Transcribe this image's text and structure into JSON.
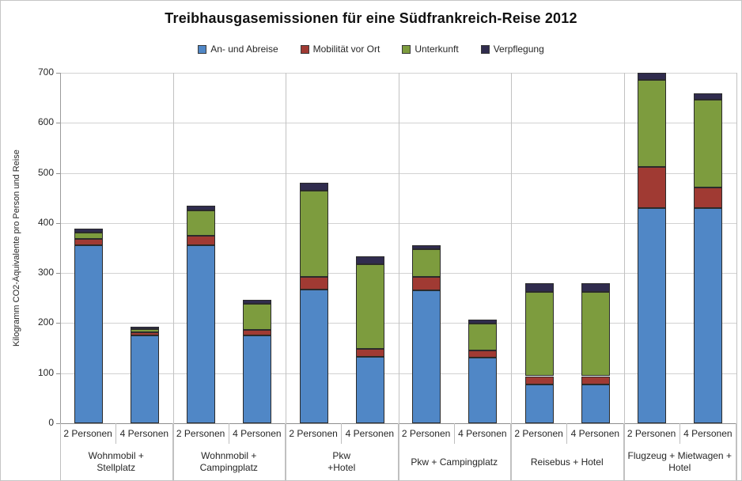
{
  "chart_data": {
    "type": "bar",
    "stacked": true,
    "title": "Treibhausgasemissionen für eine Südfrankreich-Reise 2012",
    "ylabel": "Kilogramm CO2-Äquivalente pro Person und Reise",
    "xlabel": "",
    "ylim": [
      0,
      700
    ],
    "yticks": [
      0,
      100,
      200,
      300,
      400,
      500,
      600,
      700
    ],
    "grid": "horizontal",
    "legend_position": "top",
    "series": [
      {
        "name": "An- und Abreise",
        "color": "#5087C6"
      },
      {
        "name": "Mobilität vor Ort",
        "color": "#A03A33"
      },
      {
        "name": "Unterkunft",
        "color": "#7D9C3E"
      },
      {
        "name": "Verpflegung",
        "color": "#302C4E"
      }
    ],
    "groups": [
      {
        "label": "Wohnmobil +\nStellplatz",
        "bars": [
          {
            "label": "2 Personen",
            "values": [
              355,
              13,
              13,
              7
            ]
          },
          {
            "label": "4 Personen",
            "values": [
              176,
              5,
              7,
              5
            ]
          }
        ]
      },
      {
        "label": "Wohnmobil +\nCampingplatz",
        "bars": [
          {
            "label": "2 Personen",
            "values": [
              356,
              19,
              50,
              10
            ]
          },
          {
            "label": "4 Personen",
            "values": [
              176,
              10,
              52,
              9
            ]
          }
        ]
      },
      {
        "label": "Pkw\n+Hotel",
        "bars": [
          {
            "label": "2 Personen",
            "values": [
              267,
              26,
              171,
              16
            ]
          },
          {
            "label": "4 Personen",
            "values": [
              133,
              16,
              168,
              17
            ]
          }
        ]
      },
      {
        "label": "Pkw + Campingplatz",
        "bars": [
          {
            "label": "2 Personen",
            "values": [
              265,
              28,
              54,
              8
            ]
          },
          {
            "label": "4 Personen",
            "values": [
              131,
              15,
              53,
              8
            ]
          }
        ]
      },
      {
        "label": "Reisebus + Hotel",
        "bars": [
          {
            "label": "2 Personen",
            "values": [
              78,
              16,
              169,
              17
            ]
          },
          {
            "label": "4 Personen",
            "values": [
              78,
              16,
              169,
              17
            ]
          }
        ]
      },
      {
        "label": "Flugzeug + Mietwagen +\nHotel",
        "bars": [
          {
            "label": "2 Personen",
            "values": [
              430,
              82,
              174,
              14
            ]
          },
          {
            "label": "4 Personen",
            "values": [
              430,
              41,
              175,
              13
            ]
          }
        ]
      }
    ]
  }
}
